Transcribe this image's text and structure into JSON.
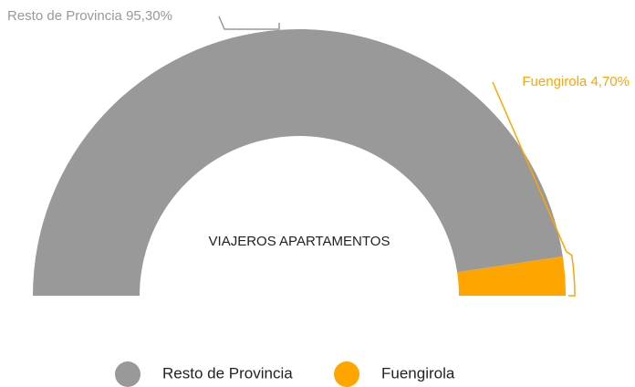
{
  "chart_data": {
    "type": "semi-donut",
    "title": "VIAJEROS APARTAMENTOS",
    "categories": [
      "Resto de Provincia",
      "Fuengirola"
    ],
    "values": [
      95.3,
      4.7
    ],
    "value_labels": [
      "95,30%",
      "4,70%"
    ],
    "colors": [
      "#999999",
      "#ffa500"
    ],
    "legend": "bottom"
  }
}
